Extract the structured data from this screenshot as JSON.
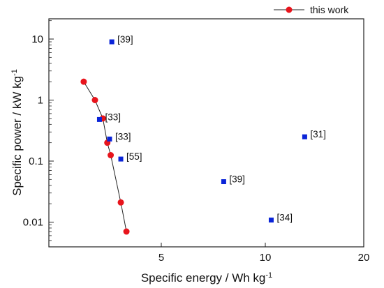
{
  "chart_data": {
    "type": "scatter",
    "title": "",
    "xlabel": "Specific energy / Wh kg",
    "xlabel_sup": "-1",
    "ylabel": "Specific power / kW kg",
    "ylabel_sup": "-1",
    "xlim": [
      0,
      20
    ],
    "ylim": [
      0.005,
      20
    ],
    "yscale": "log",
    "x_ticks": [
      {
        "value": 5,
        "label": "5"
      },
      {
        "value": 10,
        "label": "10"
      },
      {
        "value": 20,
        "label": "20"
      }
    ],
    "y_ticks": [
      {
        "value": 0.01,
        "label": "0.01"
      },
      {
        "value": 0.1,
        "label": "0.1"
      },
      {
        "value": 1,
        "label": "1"
      },
      {
        "value": 10,
        "label": "10"
      }
    ],
    "grid": false,
    "legend": {
      "placement": "top-right",
      "entries": [
        "this work"
      ]
    },
    "series": [
      {
        "name": "this work",
        "marker": "circle",
        "line": true,
        "color": "#e8141c",
        "points": [
          {
            "x": 1.55,
            "y": 2.0
          },
          {
            "x": 2.05,
            "y": 1.0
          },
          {
            "x": 2.4,
            "y": 0.5
          },
          {
            "x": 2.6,
            "y": 0.2
          },
          {
            "x": 2.75,
            "y": 0.125
          },
          {
            "x": 3.2,
            "y": 0.021
          },
          {
            "x": 3.45,
            "y": 0.007
          }
        ]
      },
      {
        "marker": "square",
        "line": false,
        "color": "#0a24d8",
        "points": [
          {
            "x": 2.8,
            "y": 9.0,
            "label": "[39]"
          },
          {
            "x": 2.25,
            "y": 0.48,
            "label": "[33]"
          },
          {
            "x": 2.7,
            "y": 0.23,
            "label": "[33]"
          },
          {
            "x": 3.2,
            "y": 0.108,
            "label": "[55]"
          },
          {
            "x": 14.0,
            "y": 0.25,
            "label": "[31]"
          },
          {
            "x": 8.0,
            "y": 0.046,
            "label": "[39]"
          },
          {
            "x": 10.6,
            "y": 0.0108,
            "label": "[34]"
          }
        ]
      }
    ]
  }
}
